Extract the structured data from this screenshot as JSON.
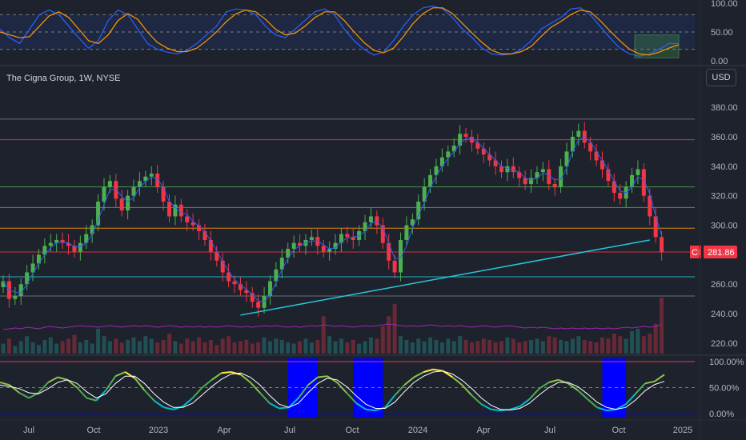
{
  "title": "The Cigna Group, 1W, NYSE",
  "currency": "USD",
  "ticker_badge": {
    "symbol": "CI",
    "price": "281.86",
    "value": 281.86
  },
  "x_ticks": [
    "Jul",
    "Oct",
    "2023",
    "Apr",
    "Jul",
    "Oct",
    "2024",
    "Apr",
    "Jul",
    "Oct",
    "2025"
  ],
  "colors": {
    "bg": "#1e222d",
    "up": "#26a69a",
    "up_fill": "#4caf50",
    "down": "#f23645",
    "trend": "#26c6da",
    "stoch_k": "#2962ff",
    "stoch_d": "#ff9800",
    "volume_ma": "#9c27b0",
    "highlight": "#0000ff",
    "sma": "#2962ff"
  },
  "chart_data": [
    {
      "type": "line",
      "name_id": "stochastic-panel",
      "y_ticks": [
        "100.00",
        "50.00",
        "0.00"
      ],
      "ylim": [
        0,
        100
      ],
      "bands": [
        80,
        50,
        20
      ],
      "series": [
        {
          "values": [
            55,
            40,
            30,
            55,
            80,
            88,
            80,
            60,
            40,
            22,
            35,
            70,
            88,
            80,
            55,
            30,
            20,
            15,
            12,
            18,
            30,
            45,
            60,
            85,
            90,
            88,
            80,
            60,
            45,
            40,
            55,
            70,
            85,
            90,
            80,
            55,
            35,
            20,
            10,
            15,
            35,
            60,
            80,
            92,
            95,
            90,
            75,
            55,
            40,
            22,
            12,
            10,
            12,
            20,
            35,
            55,
            65,
            75,
            90,
            92,
            80,
            60,
            40,
            22,
            12,
            8,
            12,
            20,
            30,
            30
          ]
        },
        {
          "values": [
            50,
            45,
            40,
            42,
            60,
            78,
            85,
            75,
            55,
            35,
            30,
            45,
            70,
            82,
            72,
            50,
            32,
            22,
            16,
            16,
            22,
            35,
            50,
            68,
            82,
            88,
            85,
            72,
            55,
            45,
            48,
            60,
            75,
            85,
            85,
            70,
            50,
            32,
            18,
            14,
            22,
            42,
            65,
            82,
            92,
            92,
            82,
            65,
            48,
            32,
            18,
            12,
            12,
            16,
            25,
            42,
            58,
            68,
            80,
            88,
            85,
            70,
            52,
            35,
            20,
            12,
            10,
            15,
            22,
            28
          ]
        }
      ]
    },
    {
      "type": "candlestick",
      "name_id": "price-panel",
      "y_ticks": [
        "380.00",
        "360.00",
        "340.00",
        "320.00",
        "300.00",
        "280.00",
        "260.00",
        "240.00",
        "220.00"
      ],
      "ylim": [
        214,
        392
      ],
      "horizontal_levels": [
        {
          "value": 372,
          "color": "#787b86"
        },
        {
          "value": 358,
          "color": "#f23645"
        },
        {
          "value": 326,
          "color": "#4caf50"
        },
        {
          "value": 312,
          "color": "#4caf50"
        },
        {
          "value": 298,
          "color": "#ff9800"
        },
        {
          "value": 281.86,
          "color": "#f23645"
        },
        {
          "value": 265,
          "color": "#26c6da"
        },
        {
          "value": 252,
          "color": "#787b86"
        }
      ],
      "trendline": {
        "from": [
          40,
          239
        ],
        "to": [
          109,
          290
        ]
      },
      "closes": [
        262,
        250,
        252,
        260,
        268,
        274,
        280,
        286,
        288,
        290,
        288,
        286,
        282,
        288,
        294,
        300,
        316,
        326,
        330,
        318,
        310,
        320,
        326,
        330,
        333,
        335,
        326,
        316,
        306,
        314,
        306,
        302,
        300,
        296,
        290,
        282,
        276,
        268,
        262,
        260,
        256,
        254,
        248,
        244,
        252,
        262,
        270,
        278,
        284,
        288,
        286,
        290,
        292,
        286,
        282,
        284,
        288,
        294,
        292,
        290,
        296,
        302,
        306,
        300,
        288,
        276,
        268,
        290,
        300,
        304,
        316,
        326,
        334,
        340,
        346,
        350,
        354,
        362,
        360,
        356,
        352,
        348,
        344,
        340,
        336,
        340,
        336,
        332,
        328,
        332,
        336,
        338,
        328,
        326,
        340,
        350,
        360,
        364,
        356,
        350,
        344,
        338,
        330,
        322,
        318,
        326,
        334,
        338,
        320,
        306,
        292,
        282
      ]
    },
    {
      "type": "oscillator",
      "name_id": "lower-oscillator-panel",
      "y_ticks": [
        "100.00%",
        "50.00%",
        "0.00%"
      ],
      "ylim": [
        0,
        100
      ],
      "bands": [
        100,
        50,
        0
      ],
      "series": [
        {
          "values": [
            60,
            55,
            40,
            30,
            40,
            60,
            70,
            65,
            50,
            30,
            25,
            45,
            72,
            80,
            68,
            45,
            25,
            12,
            8,
            14,
            30,
            50,
            65,
            78,
            80,
            75,
            60,
            40,
            20,
            10,
            12,
            30,
            55,
            70,
            72,
            60,
            40,
            20,
            8,
            6,
            12,
            35,
            55,
            70,
            80,
            85,
            82,
            70,
            55,
            35,
            18,
            8,
            6,
            8,
            14,
            28,
            48,
            60,
            65,
            58,
            45,
            28,
            12,
            6,
            8,
            18,
            38,
            58,
            62,
            75
          ]
        },
        {
          "values": [
            55,
            52,
            48,
            40,
            38,
            48,
            60,
            65,
            58,
            42,
            30,
            38,
            58,
            72,
            72,
            58,
            38,
            22,
            12,
            12,
            20,
            36,
            52,
            66,
            76,
            78,
            70,
            55,
            35,
            18,
            12,
            20,
            40,
            58,
            68,
            65,
            52,
            34,
            18,
            10,
            10,
            22,
            42,
            60,
            72,
            80,
            82,
            76,
            64,
            48,
            30,
            16,
            8,
            7,
            10,
            20,
            36,
            50,
            60,
            60,
            52,
            38,
            22,
            12,
            8,
            12,
            26,
            44,
            56,
            62
          ]
        }
      ],
      "highlight_ranges": [
        [
          48,
          53
        ],
        [
          59,
          64
        ],
        [
          101,
          105
        ]
      ]
    }
  ],
  "volume": {
    "values": [
      8,
      12,
      6,
      10,
      14,
      9,
      7,
      11,
      13,
      8,
      10,
      12,
      15,
      9,
      11,
      8,
      20,
      14,
      10,
      12,
      9,
      11,
      13,
      10,
      14,
      12,
      9,
      11,
      16,
      10,
      8,
      12,
      10,
      13,
      9,
      11,
      7,
      12,
      14,
      9,
      10,
      11,
      8,
      9,
      13,
      10,
      12,
      11,
      9,
      8,
      10,
      12,
      9,
      11,
      30,
      14,
      10,
      12,
      9,
      11,
      8,
      10,
      13,
      12,
      22,
      30,
      40,
      14,
      11,
      9,
      12,
      10,
      13,
      11,
      9,
      12,
      10,
      14,
      11,
      9,
      10,
      12,
      11,
      9,
      10,
      13,
      12,
      9,
      10,
      11,
      12,
      10,
      14,
      13,
      11,
      10,
      12,
      14,
      11,
      10,
      9,
      13,
      12,
      16,
      14,
      12,
      18,
      20,
      14,
      16,
      24,
      45
    ],
    "ma": [
      30,
      31,
      32,
      31,
      33,
      32,
      31,
      33,
      34,
      33,
      32,
      33,
      34,
      35,
      34,
      34,
      33,
      34,
      35,
      34,
      33,
      34,
      35,
      34,
      35,
      34,
      33,
      34,
      35,
      34,
      33,
      34,
      33,
      34,
      33,
      34,
      33,
      34,
      35,
      34,
      33,
      34,
      33,
      34,
      35,
      34,
      35,
      34,
      33,
      34,
      33,
      34,
      35,
      34,
      36,
      35,
      34,
      35,
      34,
      33,
      34,
      35,
      34,
      35,
      36,
      37,
      36,
      35,
      34,
      35,
      34,
      35,
      36,
      35,
      34,
      35,
      34,
      35,
      34,
      33,
      34,
      35,
      34,
      33,
      34,
      35,
      34,
      33,
      32,
      33,
      32,
      33,
      32,
      31,
      32,
      31,
      32,
      31,
      32,
      31,
      32,
      31,
      32,
      31,
      32,
      33,
      32,
      33,
      34,
      33,
      34,
      36
    ]
  }
}
